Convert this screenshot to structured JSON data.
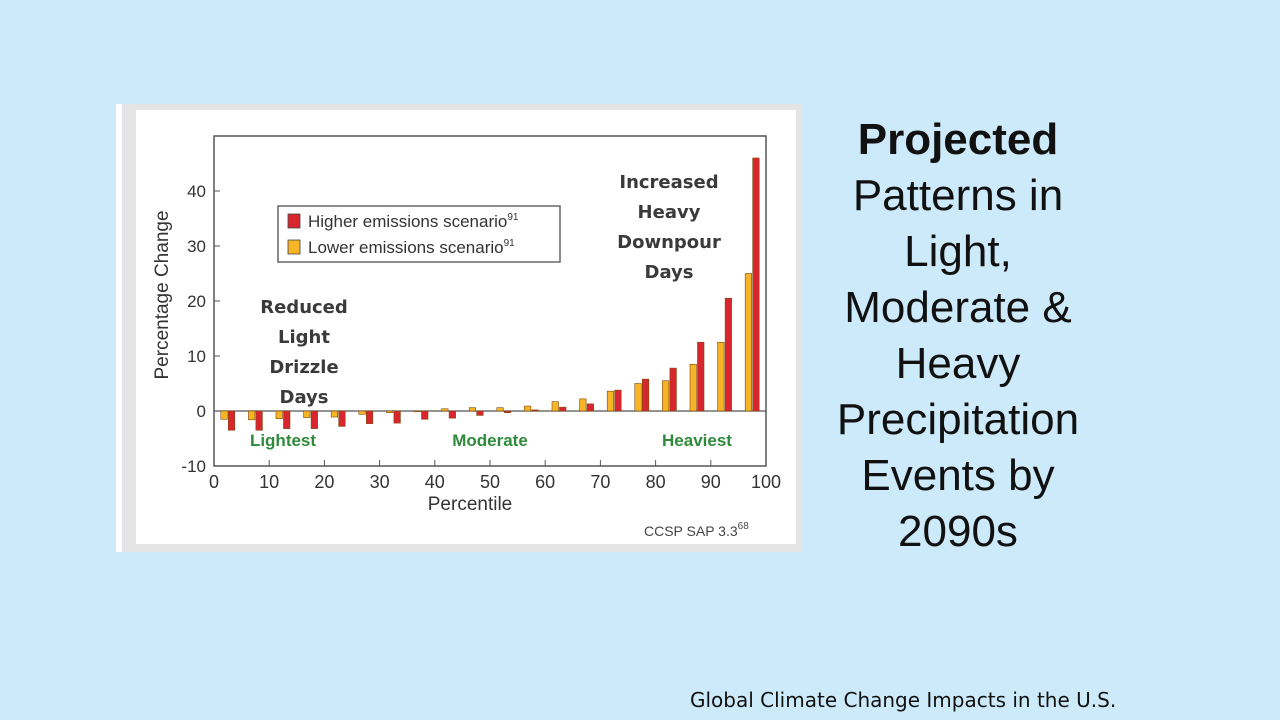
{
  "slide": {
    "title_bold": "Projected",
    "title_rest": "Patterns in Light, Moderate & Heavy Precipitation Events by 2090s",
    "source": "Global Climate Change Impacts in the U.S."
  },
  "callouts": {
    "reduced": "Reduced Light Drizzle Days",
    "increased": "Increased Heavy Downpour Days"
  },
  "chart_data": {
    "type": "bar",
    "xlabel": "Percentile",
    "ylabel": "Percentage Change",
    "xlim": [
      0,
      100
    ],
    "ylim": [
      -10,
      50
    ],
    "xticks": [
      0,
      10,
      20,
      30,
      40,
      50,
      60,
      70,
      80,
      90,
      100
    ],
    "yticks": [
      -10,
      0,
      10,
      20,
      30,
      40
    ],
    "x": [
      2.5,
      7.5,
      12.5,
      17.5,
      22.5,
      27.5,
      32.5,
      37.5,
      42.5,
      47.5,
      52.5,
      57.5,
      62.5,
      67.5,
      72.5,
      77.5,
      82.5,
      87.5,
      92.5,
      97.5
    ],
    "series": [
      {
        "name": "Higher emissions scenario",
        "superscript": "91",
        "color": "#d9262e",
        "values": [
          -3.5,
          -3.5,
          -3.2,
          -3.2,
          -2.8,
          -2.3,
          -2.2,
          -1.5,
          -1.3,
          -0.8,
          -0.3,
          0.2,
          0.7,
          1.3,
          3.8,
          5.8,
          7.8,
          12.5,
          20.5,
          46
        ]
      },
      {
        "name": "Lower emissions scenario",
        "superscript": "91",
        "color": "#f7b425",
        "values": [
          -1.5,
          -1.6,
          -1.4,
          -1.2,
          -1.1,
          -0.6,
          -0.3,
          0.0,
          0.4,
          0.6,
          0.6,
          0.9,
          1.7,
          2.2,
          3.6,
          5.0,
          5.5,
          8.5,
          12.5,
          25
        ]
      }
    ],
    "zones": [
      {
        "label": "Lightest",
        "x": 12.5,
        "color": "#2e8b3a"
      },
      {
        "label": "Moderate",
        "x": 50,
        "color": "#2e8b3a"
      },
      {
        "label": "Heaviest",
        "x": 87.5,
        "color": "#2e8b3a"
      }
    ],
    "credit": "CCSP SAP 3.3",
    "credit_superscript": "68",
    "legend_position": "top-left",
    "grid": false
  }
}
